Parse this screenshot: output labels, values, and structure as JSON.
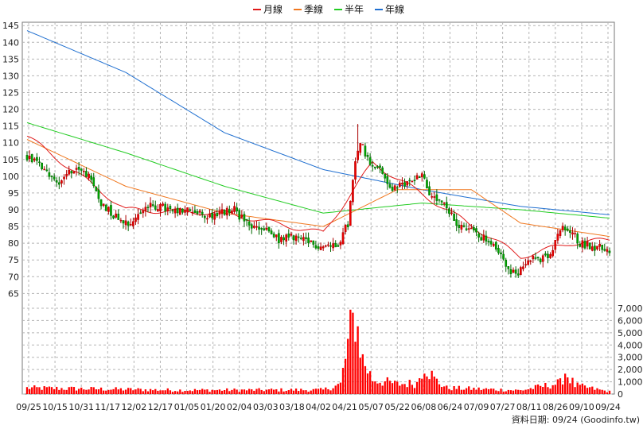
{
  "chart_data": {
    "type": "candlestick",
    "legend": [
      {
        "name": "月線",
        "color": "#e01a1a"
      },
      {
        "name": "季線",
        "color": "#f07820"
      },
      {
        "name": "半年",
        "color": "#22cc22"
      },
      {
        "name": "年線",
        "color": "#1f6fd0"
      }
    ],
    "price_axis": {
      "ticks": [
        65,
        70,
        75,
        80,
        85,
        90,
        95,
        100,
        105,
        110,
        115,
        120,
        125,
        130,
        135,
        140,
        145
      ],
      "min": 62,
      "max": 146
    },
    "volume_axis": {
      "ticks": [
        0,
        1000,
        2000,
        3000,
        4000,
        5000,
        6000,
        7000
      ],
      "tick_labels": [
        "0",
        "1,000",
        "2,000",
        "3,000",
        "4,000",
        "5,000",
        "6,000",
        "7,000"
      ],
      "min": 0,
      "max": 7000
    },
    "x_labels": [
      "09/25",
      "10/15",
      "10/31",
      "11/17",
      "12/02",
      "12/17",
      "01/05",
      "01/20",
      "02/04",
      "03/03",
      "03/18",
      "04/02",
      "04/21",
      "05/07",
      "05/22",
      "06/08",
      "06/24",
      "07/09",
      "07/27",
      "08/11",
      "08/26",
      "09/10",
      "09/24"
    ],
    "price_keys": [
      [
        0,
        106
      ],
      [
        6,
        103
      ],
      [
        12,
        98
      ],
      [
        18,
        102
      ],
      [
        24,
        101
      ],
      [
        30,
        92
      ],
      [
        36,
        88
      ],
      [
        42,
        86
      ],
      [
        48,
        91
      ],
      [
        54,
        91
      ],
      [
        60,
        89
      ],
      [
        66,
        90
      ],
      [
        72,
        88
      ],
      [
        78,
        89
      ],
      [
        84,
        90
      ],
      [
        90,
        85
      ],
      [
        96,
        84
      ],
      [
        102,
        81
      ],
      [
        108,
        82
      ],
      [
        114,
        80
      ],
      [
        120,
        79
      ],
      [
        126,
        80
      ],
      [
        130,
        86
      ],
      [
        133,
        104
      ],
      [
        135,
        111
      ],
      [
        138,
        105
      ],
      [
        142,
        103
      ],
      [
        148,
        96
      ],
      [
        154,
        98
      ],
      [
        160,
        101
      ],
      [
        164,
        93
      ],
      [
        168,
        92
      ],
      [
        174,
        86
      ],
      [
        180,
        84
      ],
      [
        186,
        81
      ],
      [
        190,
        78
      ],
      [
        194,
        74
      ],
      [
        198,
        70
      ],
      [
        203,
        76
      ],
      [
        208,
        75
      ],
      [
        212,
        76
      ],
      [
        216,
        84
      ],
      [
        220,
        84
      ],
      [
        224,
        80
      ],
      [
        230,
        79
      ],
      [
        236,
        78
      ]
    ],
    "volume_keys": [
      [
        0,
        500
      ],
      [
        60,
        320
      ],
      [
        120,
        340
      ],
      [
        127,
        800
      ],
      [
        131,
        5000
      ],
      [
        133,
        6400
      ],
      [
        136,
        2800
      ],
      [
        140,
        1200
      ],
      [
        150,
        800
      ],
      [
        158,
        900
      ],
      [
        161,
        2500
      ],
      [
        165,
        1200
      ],
      [
        170,
        500
      ],
      [
        200,
        300
      ],
      [
        216,
        900
      ],
      [
        218,
        1800
      ],
      [
        222,
        700
      ],
      [
        236,
        200
      ]
    ],
    "averages": {
      "年線": [
        [
          0,
          143.5
        ],
        [
          40,
          131
        ],
        [
          80,
          113
        ],
        [
          120,
          102
        ],
        [
          160,
          96
        ],
        [
          200,
          91
        ],
        [
          236,
          88.5
        ]
      ],
      "半年": [
        [
          0,
          116
        ],
        [
          40,
          107
        ],
        [
          80,
          97
        ],
        [
          120,
          89
        ],
        [
          160,
          92
        ],
        [
          200,
          90
        ],
        [
          236,
          87.5
        ]
      ],
      "季線": [
        [
          0,
          111
        ],
        [
          40,
          97
        ],
        [
          80,
          89
        ],
        [
          120,
          85
        ],
        [
          150,
          96
        ],
        [
          180,
          96
        ],
        [
          200,
          86
        ],
        [
          236,
          82
        ]
      ],
      "月線": [
        [
          0,
          112
        ],
        [
          20,
          101
        ],
        [
          40,
          90
        ],
        [
          80,
          89
        ],
        [
          120,
          83
        ],
        [
          140,
          104
        ],
        [
          155,
          97
        ],
        [
          170,
          90
        ],
        [
          200,
          76
        ],
        [
          220,
          80
        ],
        [
          236,
          81
        ]
      ]
    },
    "credit": "資料日期: 09/24 (Goodinfo.tw)"
  }
}
